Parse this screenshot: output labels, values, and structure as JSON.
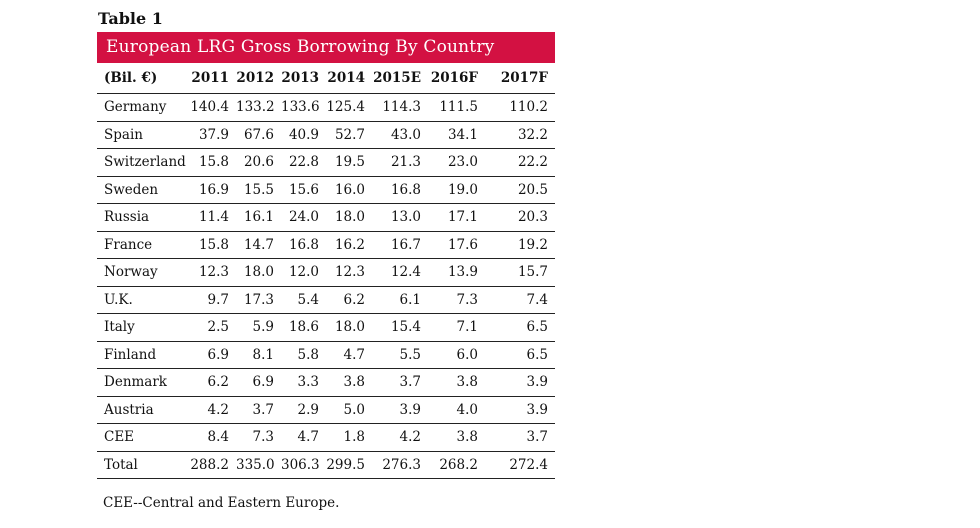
{
  "caption": "Table 1",
  "title": "European LRG Gross Borrowing By Country",
  "colors": {
    "title_bg": "#d31142",
    "title_text": "#ffffff"
  },
  "chart_data": {
    "type": "table",
    "title": "European LRG Gross Borrowing By Country",
    "columns": [
      "(Bil. €)",
      "2011",
      "2012",
      "2013",
      "2014",
      "2015E",
      "2016F",
      "2017F"
    ],
    "rows": [
      [
        "Germany",
        "140.4",
        "133.2",
        "133.6",
        "125.4",
        "114.3",
        "111.5",
        "110.2"
      ],
      [
        "Spain",
        "37.9",
        "67.6",
        "40.9",
        "52.7",
        "43.0",
        "34.1",
        "32.2"
      ],
      [
        "Switzerland",
        "15.8",
        "20.6",
        "22.8",
        "19.5",
        "21.3",
        "23.0",
        "22.2"
      ],
      [
        "Sweden",
        "16.9",
        "15.5",
        "15.6",
        "16.0",
        "16.8",
        "19.0",
        "20.5"
      ],
      [
        "Russia",
        "11.4",
        "16.1",
        "24.0",
        "18.0",
        "13.0",
        "17.1",
        "20.3"
      ],
      [
        "France",
        "15.8",
        "14.7",
        "16.8",
        "16.2",
        "16.7",
        "17.6",
        "19.2"
      ],
      [
        "Norway",
        "12.3",
        "18.0",
        "12.0",
        "12.3",
        "12.4",
        "13.9",
        "15.7"
      ],
      [
        "U.K.",
        "9.7",
        "17.3",
        "5.4",
        "6.2",
        "6.1",
        "7.3",
        "7.4"
      ],
      [
        "Italy",
        "2.5",
        "5.9",
        "18.6",
        "18.0",
        "15.4",
        "7.1",
        "6.5"
      ],
      [
        "Finland",
        "6.9",
        "8.1",
        "5.8",
        "4.7",
        "5.5",
        "6.0",
        "6.5"
      ],
      [
        "Denmark",
        "6.2",
        "6.9",
        "3.3",
        "3.8",
        "3.7",
        "3.8",
        "3.9"
      ],
      [
        "Austria",
        "4.2",
        "3.7",
        "2.9",
        "5.0",
        "3.9",
        "4.0",
        "3.9"
      ],
      [
        "CEE",
        "8.4",
        "7.3",
        "4.7",
        "1.8",
        "4.2",
        "3.8",
        "3.7"
      ],
      [
        "Total",
        "288.2",
        "335.0",
        "306.3",
        "299.5",
        "276.3",
        "268.2",
        "272.4"
      ]
    ]
  },
  "note": "CEE--Central and Eastern Europe."
}
